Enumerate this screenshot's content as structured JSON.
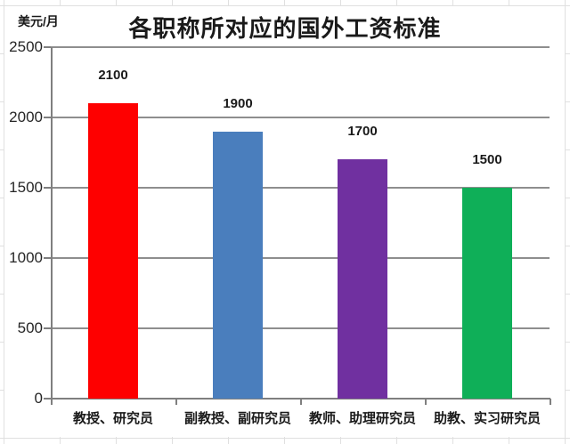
{
  "chart_data": {
    "type": "bar",
    "title": "各职称所对应的国外工资标准",
    "unit_label": "美元/月",
    "categories": [
      "教授、研究员",
      "副教授、副研究员",
      "教师、助理研究员",
      "助教、实习研究员"
    ],
    "values": [
      2100,
      1900,
      1700,
      1500
    ],
    "data_labels": [
      "2100",
      "1900",
      "1700",
      "1500"
    ],
    "bar_colors": [
      "#fe0000",
      "#4a7ebd",
      "#7030a0",
      "#0faf58"
    ],
    "ylim": [
      0,
      2500
    ],
    "yticks": [
      0,
      500,
      1000,
      1500,
      2000,
      2500
    ],
    "ytick_labels": [
      "0",
      "500",
      "1000",
      "1500",
      "2000",
      "2500"
    ],
    "grid": "horizontal",
    "legend": "none",
    "gridline_color": "#8e8e8e",
    "axis_color": "#7f7f7f",
    "text_color": "#1a1a1a"
  }
}
